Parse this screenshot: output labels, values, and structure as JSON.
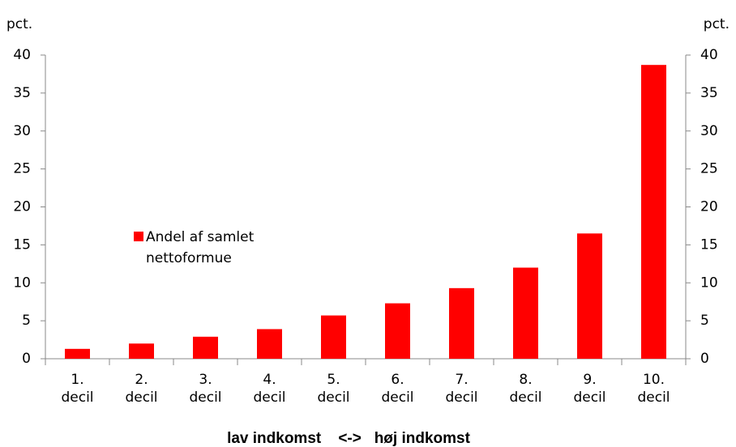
{
  "chart_data": {
    "type": "bar",
    "y_label": "pct.",
    "y2_label": "pct.",
    "x_label": "lav indkomst    <->   høj indkomst",
    "categories": [
      "1.\ndecil",
      "2.\ndecil",
      "3.\ndecil",
      "4.\ndecil",
      "5.\ndecil",
      "6.\ndecil",
      "7.\ndecil",
      "8.\ndecil",
      "9.\ndecil",
      "10.\ndecil"
    ],
    "series": [
      {
        "name": "Andel af samlet\nnettoformue",
        "color": "#ff0000",
        "values": [
          1.3,
          2.0,
          2.9,
          3.9,
          5.7,
          7.3,
          9.3,
          12.0,
          16.5,
          38.7
        ]
      }
    ],
    "ylim": [
      0,
      40
    ],
    "yticks": [
      0,
      5,
      10,
      15,
      20,
      25,
      30,
      35,
      40
    ],
    "y2lim": [
      0,
      40
    ],
    "y2ticks": [
      0,
      5,
      10,
      15,
      20,
      25,
      30,
      35,
      40
    ],
    "grid": false
  }
}
